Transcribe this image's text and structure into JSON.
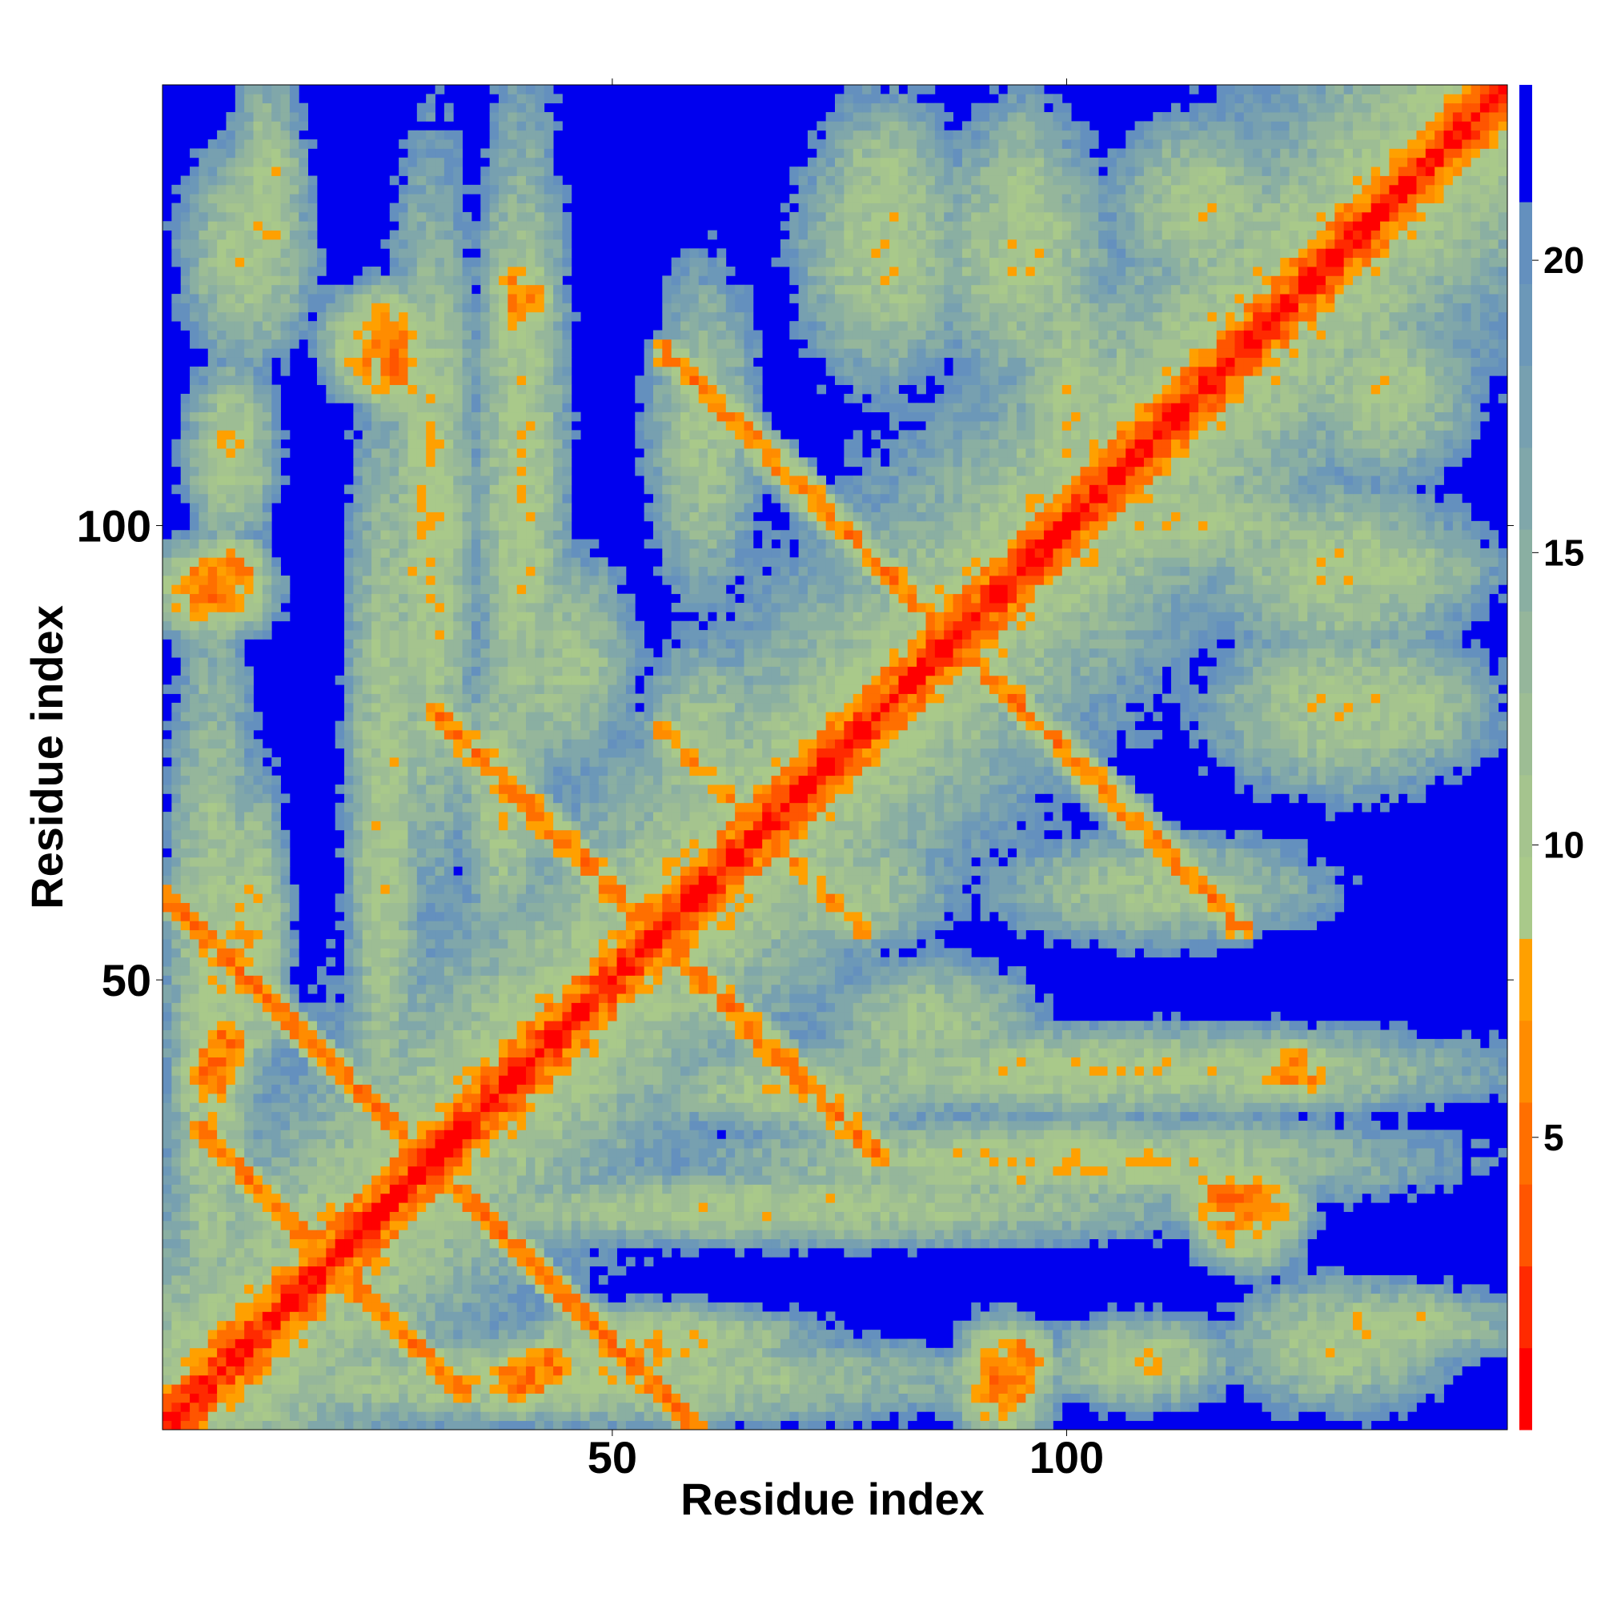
{
  "chart_data": {
    "type": "heatmap",
    "title": "",
    "xlabel": "Residue index",
    "ylabel": "Residue index",
    "n_residues": 148,
    "xlim": [
      1,
      148
    ],
    "ylim": [
      1,
      148
    ],
    "x_ticks": [
      {
        "value": 50,
        "label": "50"
      },
      {
        "value": 100,
        "label": "100"
      }
    ],
    "y_ticks": [
      {
        "value": 50,
        "label": "50"
      },
      {
        "value": 100,
        "label": "100"
      }
    ],
    "colorbar": {
      "range": [
        0,
        23
      ],
      "ticks": [
        {
          "value": 5,
          "label": "5"
        },
        {
          "value": 10,
          "label": "10"
        },
        {
          "value": 15,
          "label": "15"
        },
        {
          "value": 20,
          "label": "20"
        }
      ],
      "bands": [
        {
          "from": 0,
          "to": 1.4,
          "color": "#ff0000"
        },
        {
          "from": 1.4,
          "to": 2.8,
          "color": "#ff2a00"
        },
        {
          "from": 2.8,
          "to": 4.2,
          "color": "#ff5500"
        },
        {
          "from": 4.2,
          "to": 5.6,
          "color": "#ff6f00"
        },
        {
          "from": 5.6,
          "to": 7.0,
          "color": "#ff8c00"
        },
        {
          "from": 7.0,
          "to": 8.4,
          "color": "#ffa000"
        },
        {
          "from": 8.4,
          "to": 9.8,
          "color": "#a9c98a"
        },
        {
          "from": 9.8,
          "to": 11.2,
          "color": "#a5c48e"
        },
        {
          "from": 11.2,
          "to": 12.6,
          "color": "#9dbd94"
        },
        {
          "from": 12.6,
          "to": 14.0,
          "color": "#95b69b"
        },
        {
          "from": 14.0,
          "to": 15.4,
          "color": "#8aafa2"
        },
        {
          "from": 15.4,
          "to": 16.8,
          "color": "#80a7aa"
        },
        {
          "from": 16.8,
          "to": 18.2,
          "color": "#77a0b0"
        },
        {
          "from": 18.2,
          "to": 19.6,
          "color": "#6c98b8"
        },
        {
          "from": 19.6,
          "to": 21.0,
          "color": "#6490be"
        },
        {
          "from": 21.0,
          "to": 23.0,
          "color": "#0000ee"
        }
      ]
    },
    "structure": {
      "diagonal_value": 0.5,
      "background_value": 23,
      "features": [
        {
          "x": 55,
          "y": 10,
          "sx": 14,
          "sy": 3.5,
          "value": 8.5
        },
        {
          "x": 40,
          "y": 6,
          "sx": 4,
          "sy": 3,
          "value": 5
        },
        {
          "x": 108,
          "y": 8,
          "sx": 8,
          "sy": 4,
          "value": 9
        },
        {
          "x": 95,
          "y": 8,
          "sx": 3,
          "sy": 3,
          "value": 5
        },
        {
          "x": 135,
          "y": 12,
          "sx": 12,
          "sy": 3.5,
          "value": 9.5
        },
        {
          "x": 100,
          "y": 30,
          "sx": 32,
          "sy": 4,
          "value": 9
        },
        {
          "x": 118,
          "y": 26,
          "sx": 5,
          "sy": 3,
          "value": 5
        },
        {
          "x": 105,
          "y": 40,
          "sx": 35,
          "sy": 4,
          "value": 9.5
        },
        {
          "x": 70,
          "y": 38,
          "sx": 14,
          "sy": 4,
          "value": 10
        },
        {
          "x": 125,
          "y": 40,
          "sx": 4,
          "sy": 3,
          "value": 5.5
        },
        {
          "x": 6,
          "y": 45,
          "sx": 4,
          "sy": 40,
          "value": 9.5
        },
        {
          "x": 7,
          "y": 43,
          "sx": 3,
          "sy": 3,
          "value": 5
        },
        {
          "x": 6,
          "y": 93,
          "sx": 5,
          "sy": 4,
          "value": 5
        },
        {
          "x": 25,
          "y": 70,
          "sx": 3.5,
          "sy": 40,
          "value": 10
        },
        {
          "x": 25,
          "y": 120,
          "sx": 5,
          "sy": 5,
          "value": 5.5
        },
        {
          "x": 10,
          "y": 130,
          "sx": 6,
          "sy": 10,
          "value": 10
        },
        {
          "x": 40,
          "y": 120,
          "sx": 4,
          "sy": 20,
          "value": 10
        },
        {
          "x": 60,
          "y": 110,
          "sx": 5,
          "sy": 15,
          "value": 10.5
        },
        {
          "x": 80,
          "y": 130,
          "sx": 8,
          "sy": 12,
          "value": 10
        },
        {
          "x": 95,
          "y": 130,
          "sx": 8,
          "sy": 12,
          "value": 10
        },
        {
          "x": 110,
          "y": 100,
          "sx": 20,
          "sy": 5,
          "value": 10
        },
        {
          "x": 135,
          "y": 95,
          "sx": 10,
          "sy": 4,
          "value": 10
        },
        {
          "x": 135,
          "y": 80,
          "sx": 10,
          "sy": 6,
          "value": 10
        },
        {
          "x": 115,
          "y": 135,
          "sx": 8,
          "sy": 8,
          "value": 10
        },
        {
          "x": 45,
          "y": 85,
          "sx": 6,
          "sy": 10,
          "value": 10.5
        },
        {
          "x": 60,
          "y": 75,
          "sx": 6,
          "sy": 10,
          "value": 10.5
        }
      ],
      "anti_diagonals": [
        {
          "sum": 60,
          "range": [
            46,
            60
          ],
          "width": 1.2,
          "value": 5
        },
        {
          "sum": 38,
          "range": [
            22,
            34
          ],
          "width": 1.2,
          "value": 5
        },
        {
          "sum": 110,
          "range": [
            57,
            80
          ],
          "width": 1.5,
          "value": 5.5
        },
        {
          "sum": 175,
          "range": [
            83,
            120
          ],
          "width": 1.5,
          "value": 6
        },
        {
          "sum": 133,
          "range": [
            58,
            78
          ],
          "width": 1.5,
          "value": 7
        }
      ]
    }
  }
}
